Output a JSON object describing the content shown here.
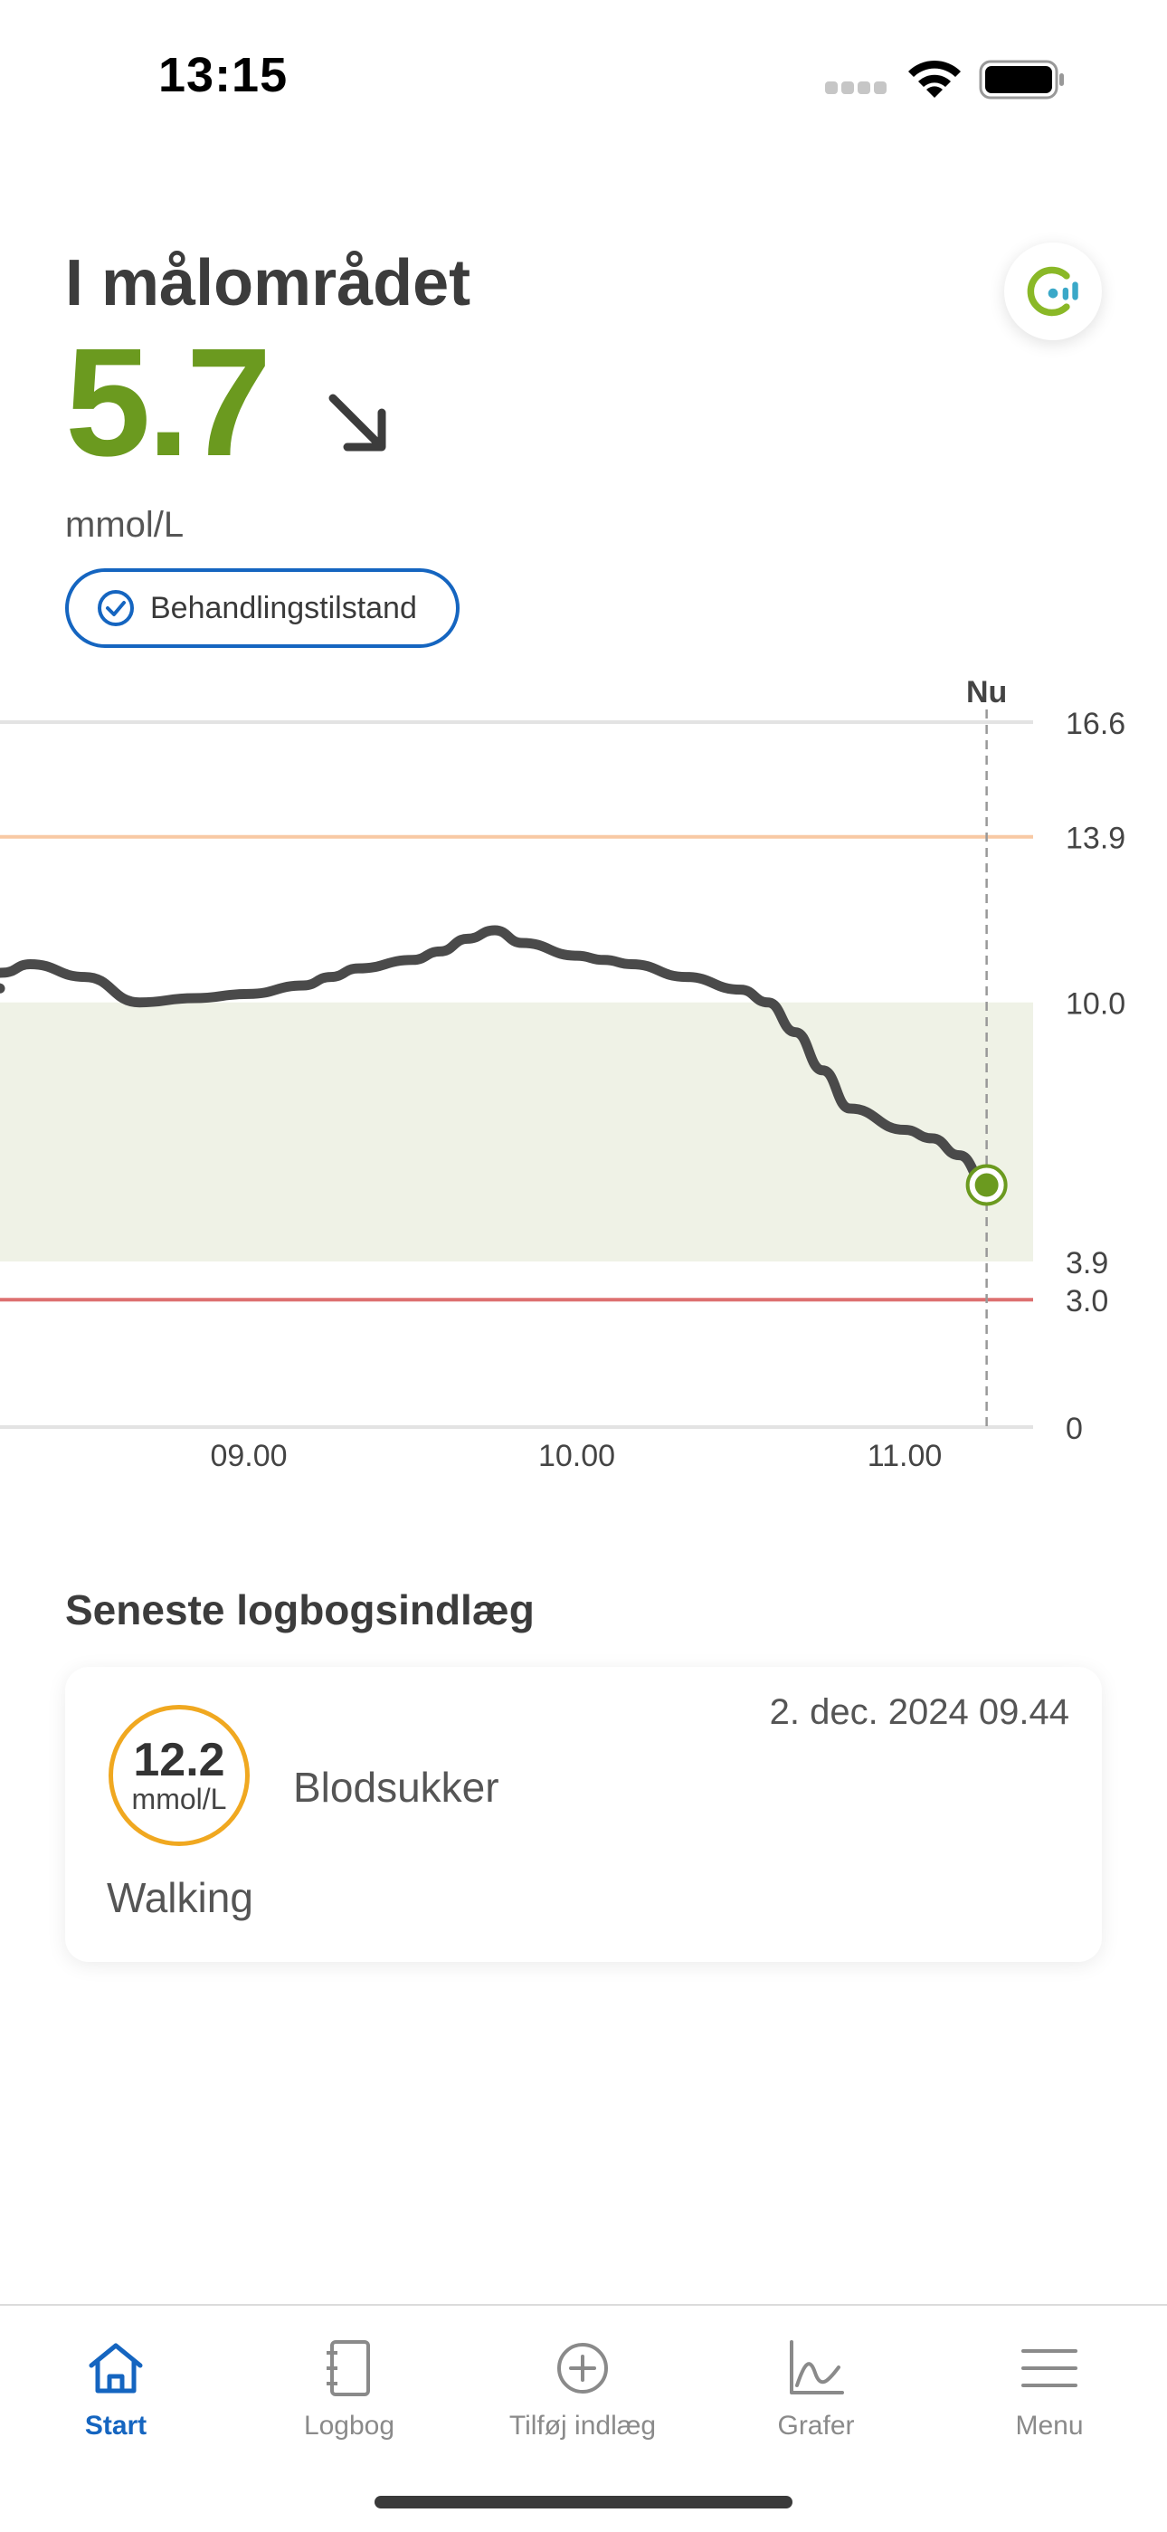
{
  "status_bar": {
    "time": "13:15"
  },
  "header": {
    "status_title": "I målområdet",
    "glucose_value": "5.7",
    "unit": "mmol/L",
    "trend": "arrow-down-right-icon",
    "badge_label": "Behandlingstilstand"
  },
  "colors": {
    "in_range_green": "#6b9a1f",
    "badge_blue": "#1565c0",
    "high_line": "#f8c9a4",
    "low_line": "#dd7070",
    "target_band": "#eff2e6",
    "log_circle": "#f0a820"
  },
  "chart": {
    "now_label": "Nu",
    "y_ticks": [
      "16.6",
      "13.9",
      "10.0",
      "3.9",
      "3.0",
      "0"
    ],
    "x_ticks": [
      "09.00",
      "10.00",
      "11.00"
    ]
  },
  "chart_data": {
    "type": "line",
    "title": "",
    "xlabel": "",
    "ylabel": "",
    "ylim": [
      0,
      16.6
    ],
    "y_ticks": [
      16.6,
      13.9,
      10.0,
      3.9,
      3.0,
      0
    ],
    "x_ticks": [
      "09.00",
      "10.00",
      "11.00"
    ],
    "target_range": [
      3.9,
      10.0
    ],
    "high_threshold": 13.9,
    "low_threshold": 3.0,
    "now_marker": "Nu",
    "series": [
      {
        "x": [
          "08.10",
          "08.15",
          "08.20",
          "08.30",
          "08.40",
          "08.50",
          "09.00",
          "09.10",
          "09.15",
          "09.20",
          "09.30",
          "09.35",
          "09.40",
          "09.45",
          "09.50",
          "10.00",
          "10.05",
          "10.10",
          "10.20",
          "10.30",
          "10.35",
          "10.40",
          "10.45",
          "10.50",
          "11.00",
          "11.05",
          "11.10",
          "11.15"
        ],
        "values": [
          10.5,
          10.7,
          10.9,
          10.6,
          10.0,
          10.1,
          10.2,
          10.4,
          10.6,
          10.8,
          11.0,
          11.2,
          11.5,
          11.7,
          11.4,
          11.1,
          11.0,
          10.9,
          10.6,
          10.3,
          10.0,
          9.3,
          8.4,
          7.5,
          7.0,
          6.8,
          6.4,
          5.7
        ]
      }
    ]
  },
  "logbook": {
    "heading": "Seneste logbogsindlæg",
    "entry": {
      "date": "2. dec. 2024 09.44",
      "value": "12.2",
      "unit": "mmol/L",
      "type": "Blodsukker",
      "note": "Walking"
    }
  },
  "tabs": [
    {
      "label": "Start",
      "icon": "home-icon",
      "active": true
    },
    {
      "label": "Logbog",
      "icon": "notebook-icon",
      "active": false
    },
    {
      "label": "Tilføj indlæg",
      "icon": "add-circle-icon",
      "active": false
    },
    {
      "label": "Grafer",
      "icon": "graph-icon",
      "active": false
    },
    {
      "label": "Menu",
      "icon": "menu-icon",
      "active": false
    }
  ]
}
